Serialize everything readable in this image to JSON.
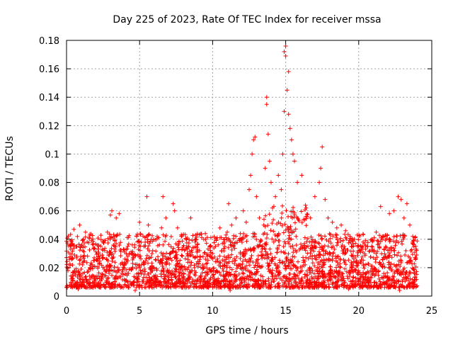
{
  "chart_data": {
    "type": "scatter",
    "title": "Day 225 of 2023, Rate Of TEC Index for receiver mssa",
    "xlabel": "GPS time / hours",
    "ylabel": "ROTI / TECUs",
    "xlim": [
      0,
      25
    ],
    "ylim": [
      0,
      0.18
    ],
    "xticks": [
      0,
      5,
      10,
      15,
      20,
      25
    ],
    "yticks": [
      0,
      0.02,
      0.04,
      0.06,
      0.08,
      0.1,
      0.12,
      0.14,
      0.16,
      0.18
    ],
    "xtick_labels": [
      "0",
      "5",
      "10",
      "15",
      "20",
      "25"
    ],
    "ytick_labels": [
      "0",
      "0.02",
      "0.04",
      "0.06",
      "0.08",
      "0.1",
      "0.12",
      "0.14",
      "0.16",
      "0.18"
    ],
    "grid": true,
    "marker": "+",
    "color": "#ff0000",
    "series": [
      {
        "name": "ROTI",
        "points": [
          [
            0.1,
            0.018
          ],
          [
            0.3,
            0.035
          ],
          [
            0.5,
            0.047
          ],
          [
            0.7,
            0.028
          ],
          [
            0.9,
            0.05
          ],
          [
            1.1,
            0.022
          ],
          [
            1.3,
            0.045
          ],
          [
            1.6,
            0.02
          ],
          [
            1.9,
            0.025
          ],
          [
            2.2,
            0.03
          ],
          [
            2.5,
            0.038
          ],
          [
            2.8,
            0.045
          ],
          [
            3.0,
            0.057
          ],
          [
            3.1,
            0.06
          ],
          [
            3.4,
            0.055
          ],
          [
            3.6,
            0.058
          ],
          [
            3.9,
            0.033
          ],
          [
            4.2,
            0.028
          ],
          [
            4.5,
            0.036
          ],
          [
            4.8,
            0.042
          ],
          [
            5.0,
            0.052
          ],
          [
            5.3,
            0.035
          ],
          [
            5.5,
            0.07
          ],
          [
            5.6,
            0.05
          ],
          [
            5.9,
            0.032
          ],
          [
            6.2,
            0.042
          ],
          [
            6.5,
            0.048
          ],
          [
            6.6,
            0.07
          ],
          [
            6.8,
            0.055
          ],
          [
            7.1,
            0.03
          ],
          [
            7.3,
            0.065
          ],
          [
            7.4,
            0.06
          ],
          [
            7.6,
            0.048
          ],
          [
            7.9,
            0.033
          ],
          [
            8.2,
            0.04
          ],
          [
            8.5,
            0.055
          ],
          [
            8.8,
            0.038
          ],
          [
            9.1,
            0.032
          ],
          [
            9.5,
            0.044
          ],
          [
            9.8,
            0.035
          ],
          [
            10.0,
            0.03
          ],
          [
            10.2,
            0.035
          ],
          [
            10.5,
            0.048
          ],
          [
            10.8,
            0.038
          ],
          [
            11.0,
            0.045
          ],
          [
            11.1,
            0.065
          ],
          [
            11.3,
            0.05
          ],
          [
            11.6,
            0.055
          ],
          [
            11.9,
            0.044
          ],
          [
            12.1,
            0.06
          ],
          [
            12.3,
            0.052
          ],
          [
            12.5,
            0.075
          ],
          [
            12.6,
            0.085
          ],
          [
            12.7,
            0.1
          ],
          [
            12.8,
            0.11
          ],
          [
            12.9,
            0.112
          ],
          [
            13.0,
            0.07
          ],
          [
            13.2,
            0.055
          ],
          [
            13.5,
            0.05
          ],
          [
            13.6,
            0.09
          ],
          [
            13.7,
            0.135
          ],
          [
            13.7,
            0.14
          ],
          [
            13.8,
            0.114
          ],
          [
            13.9,
            0.095
          ],
          [
            14.0,
            0.08
          ],
          [
            14.1,
            0.062
          ],
          [
            14.3,
            0.07
          ],
          [
            14.5,
            0.085
          ],
          [
            14.7,
            0.075
          ],
          [
            14.8,
            0.1
          ],
          [
            14.9,
            0.13
          ],
          [
            14.9,
            0.172
          ],
          [
            15.0,
            0.176
          ],
          [
            15.0,
            0.169
          ],
          [
            15.1,
            0.145
          ],
          [
            15.2,
            0.158
          ],
          [
            15.2,
            0.128
          ],
          [
            15.3,
            0.118
          ],
          [
            15.4,
            0.11
          ],
          [
            15.5,
            0.1
          ],
          [
            15.6,
            0.095
          ],
          [
            15.8,
            0.08
          ],
          [
            16.1,
            0.085
          ],
          [
            16.4,
            0.062
          ],
          [
            16.7,
            0.055
          ],
          [
            17.0,
            0.07
          ],
          [
            17.3,
            0.08
          ],
          [
            17.4,
            0.09
          ],
          [
            17.5,
            0.105
          ],
          [
            17.7,
            0.068
          ],
          [
            17.9,
            0.055
          ],
          [
            18.2,
            0.052
          ],
          [
            18.5,
            0.048
          ],
          [
            18.8,
            0.05
          ],
          [
            19.1,
            0.046
          ],
          [
            19.4,
            0.042
          ],
          [
            19.7,
            0.04
          ],
          [
            20.0,
            0.035
          ],
          [
            20.3,
            0.038
          ],
          [
            20.6,
            0.035
          ],
          [
            20.9,
            0.04
          ],
          [
            21.2,
            0.045
          ],
          [
            21.5,
            0.063
          ],
          [
            21.8,
            0.042
          ],
          [
            22.1,
            0.058
          ],
          [
            22.4,
            0.06
          ],
          [
            22.7,
            0.07
          ],
          [
            22.9,
            0.068
          ],
          [
            23.1,
            0.055
          ],
          [
            23.3,
            0.065
          ],
          [
            23.5,
            0.05
          ],
          [
            23.7,
            0.042
          ],
          [
            23.9,
            0.035
          ],
          [
            0.4,
            0.012
          ],
          [
            1.2,
            0.01
          ],
          [
            2.0,
            0.012
          ],
          [
            3.3,
            0.01
          ],
          [
            4.1,
            0.011
          ],
          [
            5.2,
            0.01
          ],
          [
            6.1,
            0.012
          ],
          [
            7.0,
            0.011
          ],
          [
            8.0,
            0.01
          ],
          [
            9.0,
            0.012
          ],
          [
            10.1,
            0.01
          ],
          [
            11.4,
            0.006
          ],
          [
            12.2,
            0.01
          ],
          [
            13.1,
            0.011
          ],
          [
            14.2,
            0.012
          ],
          [
            15.7,
            0.01
          ],
          [
            16.5,
            0.011
          ],
          [
            17.6,
            0.01
          ],
          [
            18.6,
            0.012
          ],
          [
            19.6,
            0.011
          ],
          [
            20.5,
            0.01
          ],
          [
            21.4,
            0.012
          ],
          [
            22.5,
            0.01
          ],
          [
            23.4,
            0.011
          ],
          [
            0.8,
            0.005
          ],
          [
            4.7,
            0.004
          ],
          [
            11.2,
            0.004
          ],
          [
            15.3,
            0.006
          ],
          [
            19.3,
            0.005
          ],
          [
            22.8,
            0.004
          ]
        ]
      }
    ]
  }
}
